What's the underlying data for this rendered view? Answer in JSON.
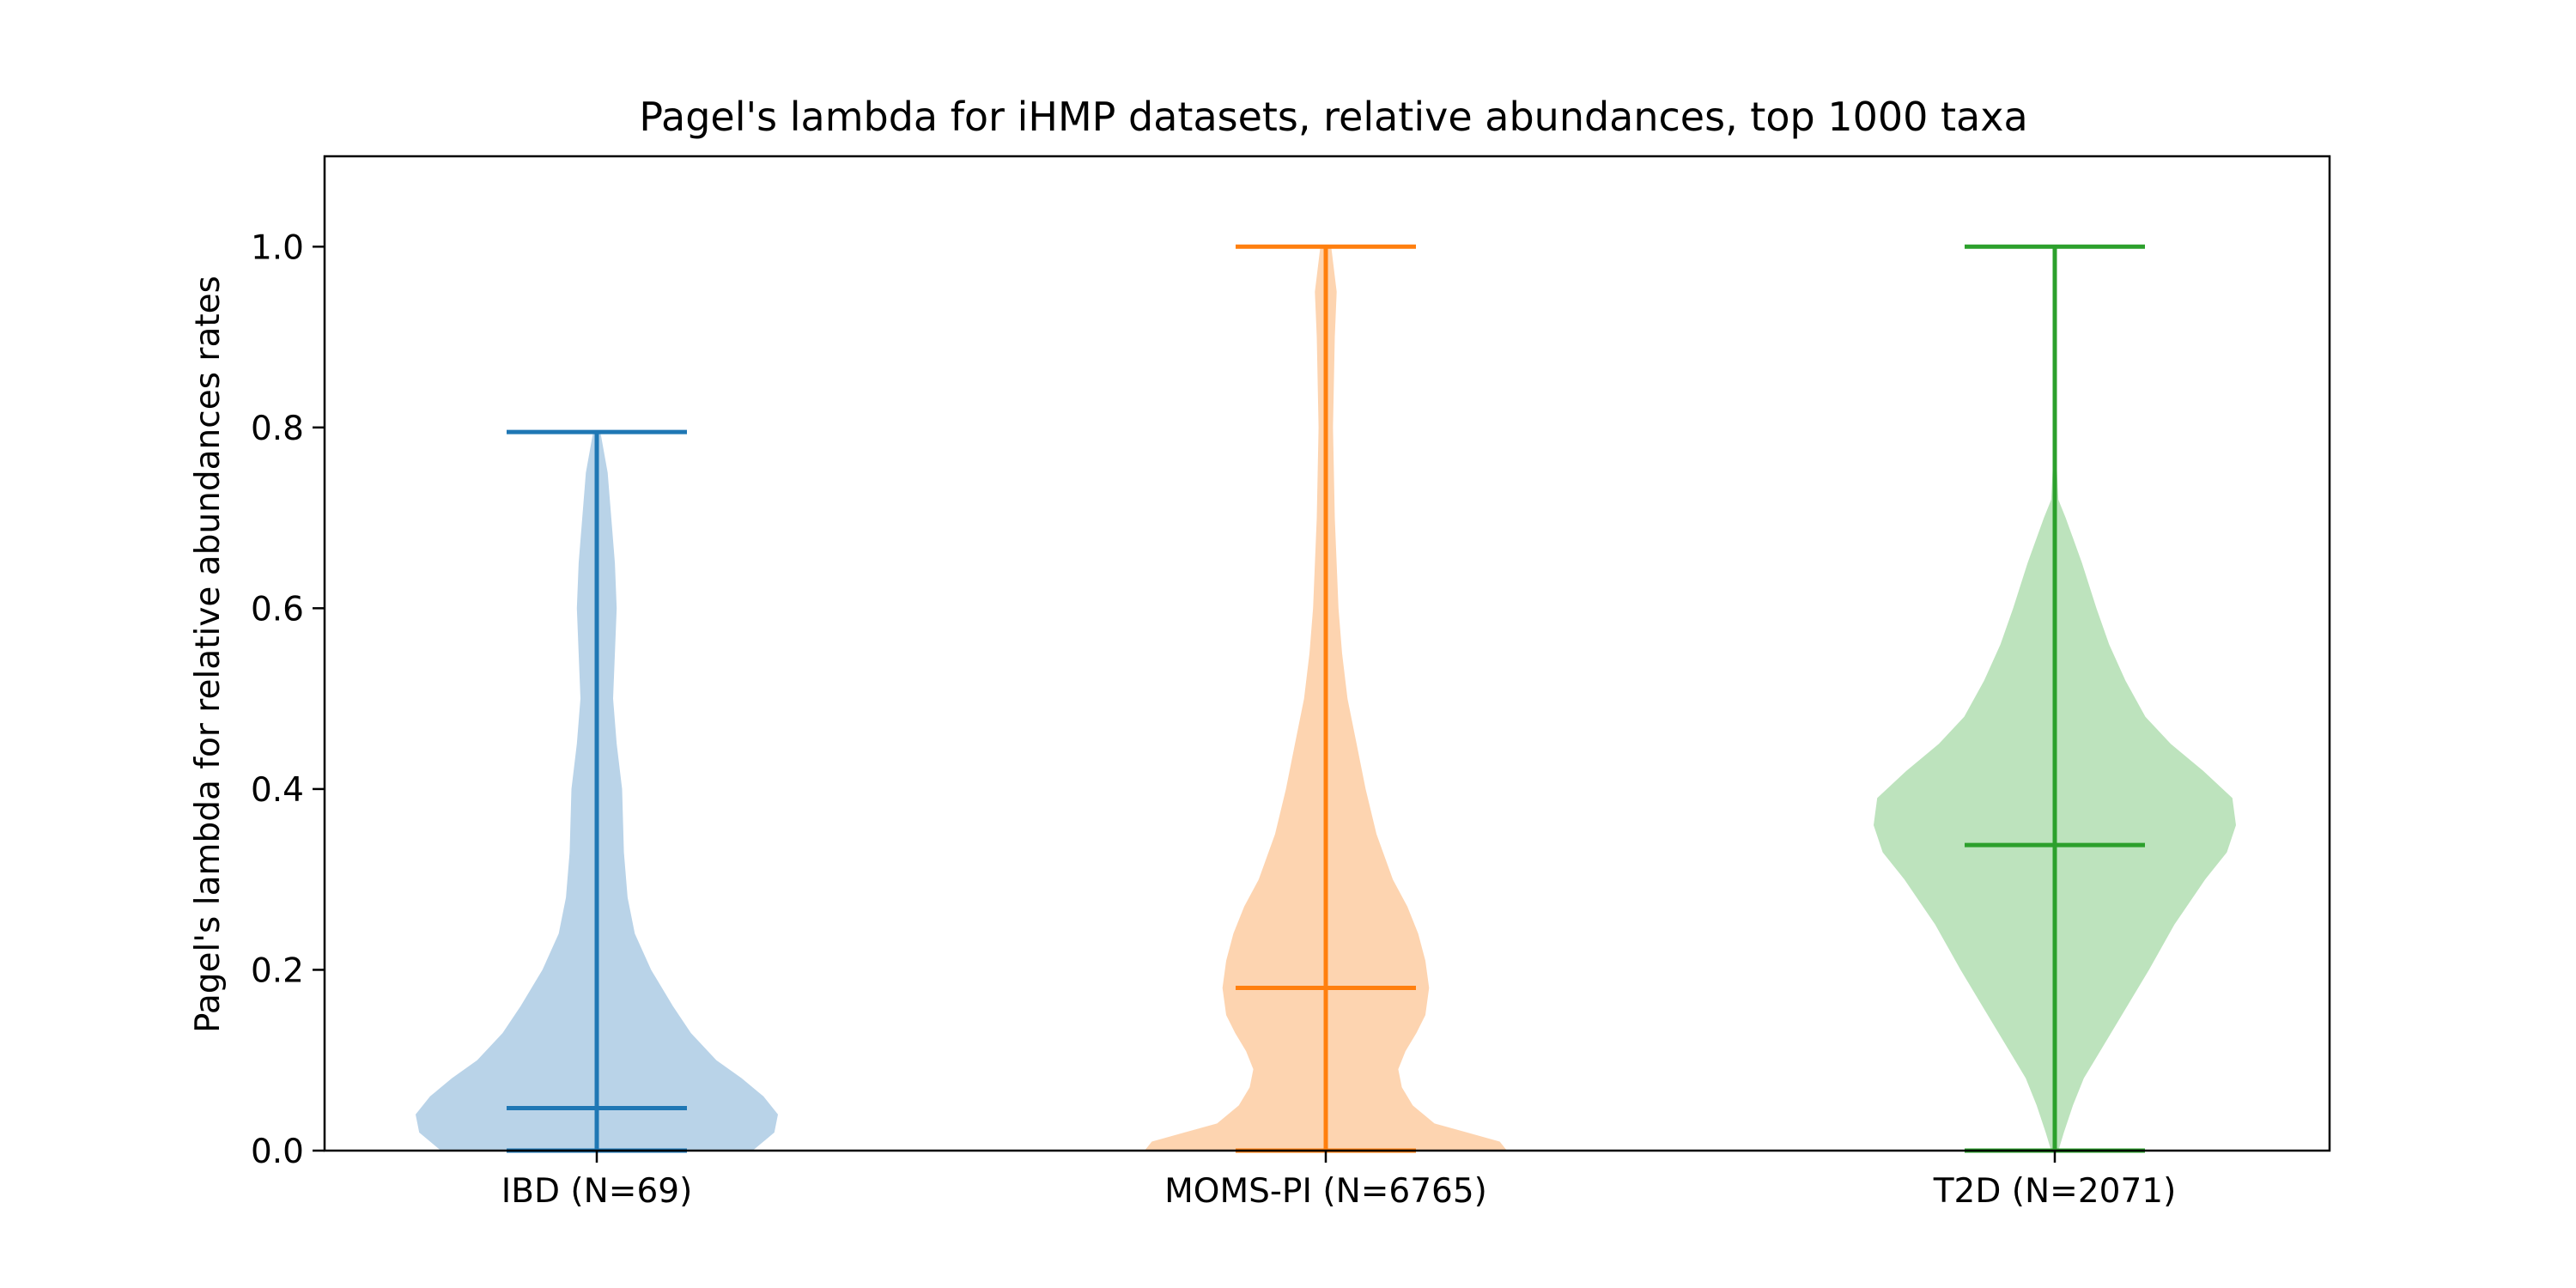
{
  "chart_data": {
    "type": "violin",
    "title": "Pagel's lambda for iHMP datasets, relative abundances, top 1000 taxa",
    "xlabel": "",
    "ylabel": "Pagel's lambda for relative abundances rates",
    "ylim": [
      -0.0,
      1.1
    ],
    "yticks": [
      0.0,
      0.2,
      0.4,
      0.6,
      0.8,
      1.0
    ],
    "ytick_labels": [
      "0.0",
      "0.2",
      "0.4",
      "0.6",
      "0.8",
      "1.0"
    ],
    "categories": [
      "IBD (N=69)",
      "MOMS-PI (N=6765)",
      "T2D (N=2071)"
    ],
    "grid": false,
    "legend": "none",
    "series": [
      {
        "category": "IBD (N=69)",
        "color": "#1f77b4",
        "fill_color": "#b9d3e8",
        "min": 0.0,
        "median": 0.047,
        "max": 0.795,
        "density_profile": [
          [
            0.0,
            0.86
          ],
          [
            0.02,
            0.98
          ],
          [
            0.04,
            1.0
          ],
          [
            0.06,
            0.92
          ],
          [
            0.08,
            0.8
          ],
          [
            0.1,
            0.66
          ],
          [
            0.13,
            0.52
          ],
          [
            0.16,
            0.42
          ],
          [
            0.2,
            0.3
          ],
          [
            0.24,
            0.21
          ],
          [
            0.28,
            0.17
          ],
          [
            0.33,
            0.15
          ],
          [
            0.4,
            0.14
          ],
          [
            0.45,
            0.11
          ],
          [
            0.5,
            0.09
          ],
          [
            0.55,
            0.1
          ],
          [
            0.6,
            0.11
          ],
          [
            0.65,
            0.1
          ],
          [
            0.7,
            0.08
          ],
          [
            0.75,
            0.06
          ],
          [
            0.795,
            0.02
          ]
        ]
      },
      {
        "category": "MOMS-PI (N=6765)",
        "color": "#ff7f0e",
        "fill_color": "#fdd4b0",
        "min": 0.0,
        "median": 0.18,
        "max": 1.0,
        "density_profile": [
          [
            0.0,
            1.0
          ],
          [
            0.01,
            0.96
          ],
          [
            0.02,
            0.78
          ],
          [
            0.03,
            0.6
          ],
          [
            0.05,
            0.48
          ],
          [
            0.07,
            0.42
          ],
          [
            0.09,
            0.4
          ],
          [
            0.11,
            0.44
          ],
          [
            0.13,
            0.5
          ],
          [
            0.15,
            0.55
          ],
          [
            0.18,
            0.57
          ],
          [
            0.21,
            0.55
          ],
          [
            0.24,
            0.51
          ],
          [
            0.27,
            0.45
          ],
          [
            0.3,
            0.37
          ],
          [
            0.35,
            0.28
          ],
          [
            0.4,
            0.22
          ],
          [
            0.45,
            0.17
          ],
          [
            0.5,
            0.12
          ],
          [
            0.55,
            0.09
          ],
          [
            0.6,
            0.07
          ],
          [
            0.7,
            0.05
          ],
          [
            0.8,
            0.04
          ],
          [
            0.9,
            0.05
          ],
          [
            0.95,
            0.06
          ],
          [
            1.0,
            0.03
          ]
        ]
      },
      {
        "category": "T2D (N=2071)",
        "color": "#2ca02c",
        "fill_color": "#bde3bd",
        "min": 0.0,
        "median": 0.338,
        "max": 1.0,
        "density_profile": [
          [
            0.0,
            0.02
          ],
          [
            0.02,
            0.05
          ],
          [
            0.05,
            0.1
          ],
          [
            0.08,
            0.16
          ],
          [
            0.11,
            0.25
          ],
          [
            0.15,
            0.37
          ],
          [
            0.2,
            0.52
          ],
          [
            0.25,
            0.66
          ],
          [
            0.3,
            0.83
          ],
          [
            0.33,
            0.95
          ],
          [
            0.36,
            1.0
          ],
          [
            0.39,
            0.98
          ],
          [
            0.42,
            0.82
          ],
          [
            0.45,
            0.64
          ],
          [
            0.48,
            0.5
          ],
          [
            0.52,
            0.39
          ],
          [
            0.56,
            0.3
          ],
          [
            0.6,
            0.23
          ],
          [
            0.65,
            0.15
          ],
          [
            0.7,
            0.06
          ],
          [
            0.72,
            0.02
          ],
          [
            0.8,
            0.0
          ],
          [
            1.0,
            0.0
          ]
        ]
      }
    ]
  }
}
